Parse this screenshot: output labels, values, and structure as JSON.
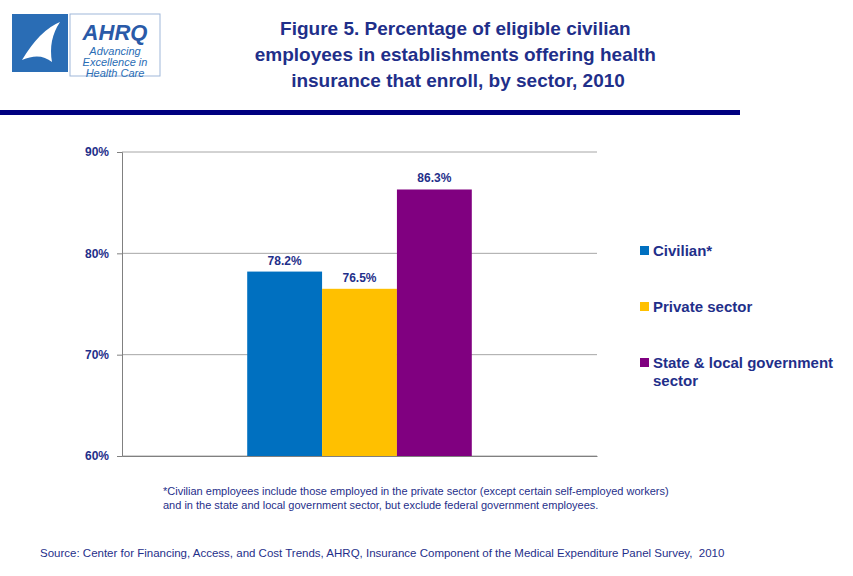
{
  "chart_data": {
    "type": "bar",
    "title": "Figure 5. Percentage of eligible civilian employees in establishments offering health insurance that enroll, by sector, 2010",
    "categories": [
      null
    ],
    "series": [
      {
        "name": "Civilian*",
        "color": "#0070c0",
        "values": [
          78.2
        ],
        "value_labels": [
          "78.2%"
        ]
      },
      {
        "name": "Private sector",
        "color": "#ffc000",
        "values": [
          76.5
        ],
        "value_labels": [
          "76.5%"
        ]
      },
      {
        "name": "State & local government sector",
        "color": "#800080",
        "values": [
          86.3
        ],
        "value_labels": [
          "86.3%"
        ]
      }
    ],
    "ylim": [
      60,
      90
    ],
    "yticks": [
      {
        "value": 60,
        "label": "60%"
      },
      {
        "value": 70,
        "label": "70%"
      },
      {
        "value": 80,
        "label": "80%"
      },
      {
        "value": 90,
        "label": "90%"
      }
    ],
    "grid": true,
    "legend": "right",
    "data_labels": true,
    "footnote": [
      "*Civilian employees include those employed in the private sector (except certain self-employed workers)",
      "and in the state and local government sector, but exclude federal government employees."
    ],
    "source": "Source: Center for Financing, Access, and Cost Trends, AHRQ, Insurance Component of the Medical Expenditure Panel Survey,  2010",
    "logo": [
      "AHRQ",
      "Advancing",
      "Excellence in",
      "Health Care"
    ]
  }
}
